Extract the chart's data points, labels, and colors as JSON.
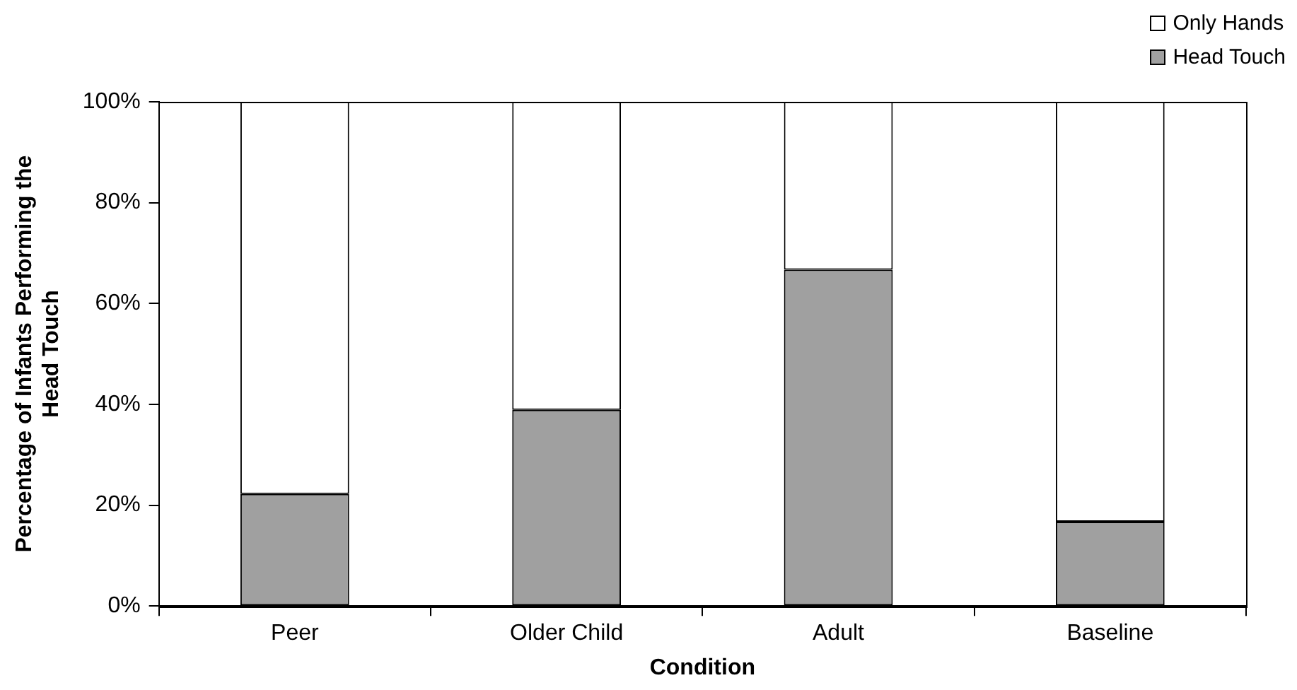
{
  "chart_data": {
    "type": "bar",
    "stacked": true,
    "xlabel": "Condition",
    "ylabel": "Percentage of Infants Performing the Head Touch",
    "categories": [
      "Peer",
      "Older Child",
      "Adult",
      "Baseline"
    ],
    "series": [
      {
        "name": "Head Touch",
        "color": "#a0a0a0",
        "values": [
          22.2,
          38.9,
          66.7,
          16.7
        ]
      },
      {
        "name": "Only Hands",
        "color": "#ffffff",
        "values": [
          77.8,
          61.1,
          33.3,
          83.3
        ]
      }
    ],
    "ylim": [
      0,
      100
    ],
    "yticks": [
      {
        "value": 0,
        "label": "0%"
      },
      {
        "value": 20,
        "label": "20%"
      },
      {
        "value": 40,
        "label": "40%"
      },
      {
        "value": 60,
        "label": "60%"
      },
      {
        "value": 80,
        "label": "80%"
      },
      {
        "value": 100,
        "label": "100%"
      }
    ],
    "grid": false,
    "legend": "top right"
  }
}
